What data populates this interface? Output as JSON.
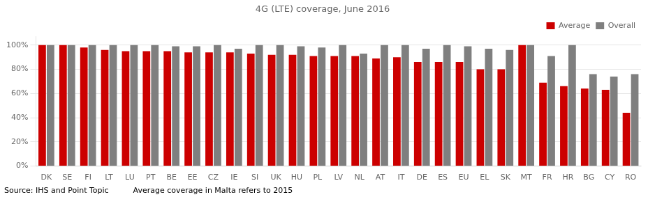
{
  "chart_data": {
    "type": "bar",
    "title": "4G (LTE) coverage, June 2016",
    "categories": [
      "DK",
      "SE",
      "FI",
      "LT",
      "LU",
      "PT",
      "BE",
      "EE",
      "CZ",
      "IE",
      "SI",
      "UK",
      "HU",
      "PL",
      "LV",
      "NL",
      "AT",
      "IT",
      "DE",
      "ES",
      "EU",
      "EL",
      "SK",
      "MT",
      "FR",
      "HR",
      "BG",
      "CY",
      "RO"
    ],
    "series": [
      {
        "name": "Average",
        "color": "#cc0000",
        "values": [
          100,
          100,
          98,
          96,
          95,
          95,
          95,
          94,
          94,
          94,
          93,
          92,
          92,
          91,
          91,
          91,
          89,
          90,
          86,
          86,
          86,
          80,
          80,
          100,
          69,
          66,
          64,
          63,
          44
        ]
      },
      {
        "name": "Overall",
        "color": "#7f7f7f",
        "values": [
          100,
          100,
          100,
          100,
          100,
          100,
          99,
          99,
          100,
          97,
          100,
          100,
          99,
          98,
          100,
          93,
          100,
          100,
          97,
          100,
          99,
          97,
          96,
          100,
          91,
          100,
          76,
          74,
          76
        ]
      }
    ],
    "ylim": [
      0,
      107
    ],
    "yticks": [
      {
        "value": 0,
        "label": "0%"
      },
      {
        "value": 20,
        "label": "20%"
      },
      {
        "value": 40,
        "label": "40%"
      },
      {
        "value": 60,
        "label": "60%"
      },
      {
        "value": 80,
        "label": "80%"
      },
      {
        "value": 100,
        "label": "100%"
      }
    ],
    "grid": true,
    "legend": "upper right",
    "annotations": [
      "Source: IHS and Point Topic          Average coverage in Malta refers to 2015"
    ]
  }
}
